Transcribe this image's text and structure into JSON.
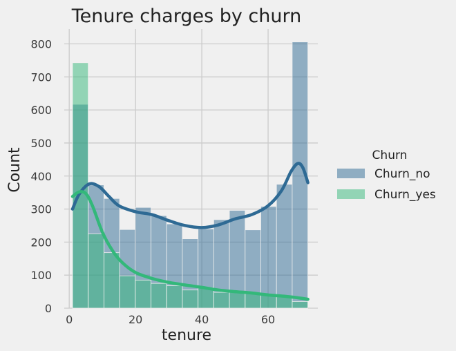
{
  "chart_data": {
    "type": "histogram",
    "title": "Tenure charges by churn",
    "xlabel": "tenure",
    "ylabel": "Count",
    "xlim": [
      -1.5,
      75
    ],
    "ylim": [
      0,
      845
    ],
    "xticks": [
      0,
      20,
      40,
      60
    ],
    "yticks": [
      0,
      100,
      200,
      300,
      400,
      500,
      600,
      700,
      800
    ],
    "grid": true,
    "legend": {
      "title": "Churn",
      "position": "right"
    },
    "bin_edges": [
      1,
      5.73,
      10.47,
      15.2,
      19.93,
      24.67,
      29.4,
      34.13,
      38.87,
      43.6,
      48.33,
      53.07,
      57.8,
      62.53,
      67.27,
      72
    ],
    "series": [
      {
        "name": "Churn_no",
        "color": "#2e6a94",
        "counts": [
          617,
          373,
          332,
          238,
          305,
          280,
          255,
          210,
          240,
          268,
          296,
          237,
          308,
          375,
          806
        ],
        "kde": [
          [
            1,
            300
          ],
          [
            3,
            345
          ],
          [
            6,
            376
          ],
          [
            9,
            368
          ],
          [
            12,
            338
          ],
          [
            15,
            310
          ],
          [
            20,
            292
          ],
          [
            25,
            283
          ],
          [
            30,
            265
          ],
          [
            35,
            250
          ],
          [
            40,
            244
          ],
          [
            45,
            252
          ],
          [
            50,
            270
          ],
          [
            55,
            283
          ],
          [
            60,
            310
          ],
          [
            64,
            355
          ],
          [
            67,
            415
          ],
          [
            69,
            438
          ],
          [
            70.5,
            425
          ],
          [
            72,
            380
          ]
        ]
      },
      {
        "name": "Churn_yes",
        "color": "#33b87a",
        "counts": [
          743,
          225,
          168,
          98,
          85,
          75,
          68,
          55,
          62,
          48,
          50,
          45,
          40,
          35,
          20
        ],
        "kde": [
          [
            1,
            338
          ],
          [
            3,
            352
          ],
          [
            5,
            347
          ],
          [
            7,
            310
          ],
          [
            10,
            230
          ],
          [
            13,
            175
          ],
          [
            16,
            138
          ],
          [
            20,
            108
          ],
          [
            25,
            90
          ],
          [
            30,
            78
          ],
          [
            35,
            70
          ],
          [
            40,
            63
          ],
          [
            45,
            55
          ],
          [
            50,
            50
          ],
          [
            55,
            46
          ],
          [
            60,
            40
          ],
          [
            65,
            36
          ],
          [
            70,
            30
          ],
          [
            72,
            27
          ]
        ]
      }
    ]
  }
}
